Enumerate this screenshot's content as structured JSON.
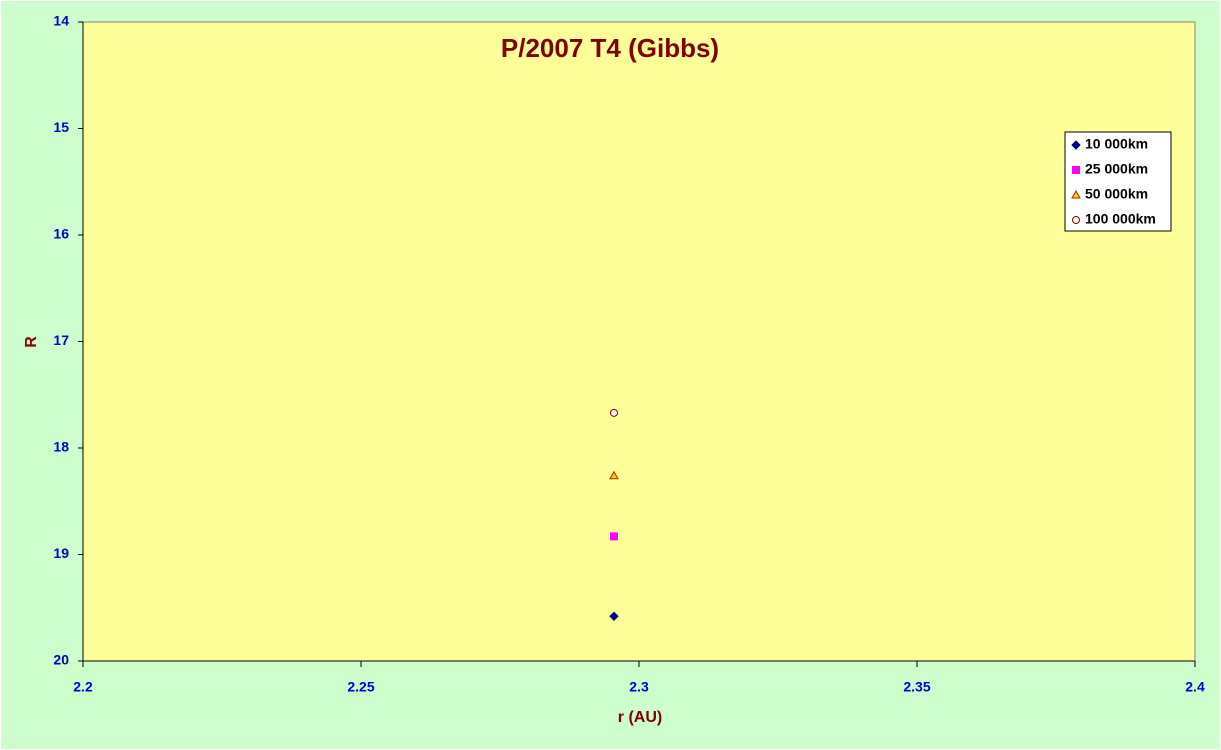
{
  "chart_data": {
    "type": "scatter",
    "title": "P/2007 T4 (Gibbs)",
    "x_label": "r (AU)",
    "y_label": "R",
    "xlim": [
      2.2,
      2.4
    ],
    "xticks": [
      2.2,
      2.25,
      2.3,
      2.35,
      2.4
    ],
    "ylim": [
      14,
      20
    ],
    "yticks": [
      14,
      15,
      16,
      17,
      18,
      19,
      20
    ],
    "y_reversed": true,
    "grid": false,
    "legend": "upper right",
    "series": [
      {
        "name": "10 000km",
        "color": "#000080",
        "edgecolor": "#000080",
        "marker": "diamond",
        "x": [
          2.2955
        ],
        "values": [
          19.58
        ]
      },
      {
        "name": "25 000km",
        "color": "#ff00ff",
        "edgecolor": "#ff00ff",
        "marker": "square",
        "x": [
          2.2955
        ],
        "values": [
          18.83
        ]
      },
      {
        "name": "50 000km",
        "color": "#ffcc00",
        "edgecolor": "#993300",
        "marker": "triangle",
        "x": [
          2.2955
        ],
        "values": [
          18.26
        ]
      },
      {
        "name": "100 000km",
        "color": "#ffffff",
        "edgecolor": "#800000",
        "marker": "circle",
        "x": [
          2.2955
        ],
        "values": [
          17.67
        ]
      }
    ]
  }
}
